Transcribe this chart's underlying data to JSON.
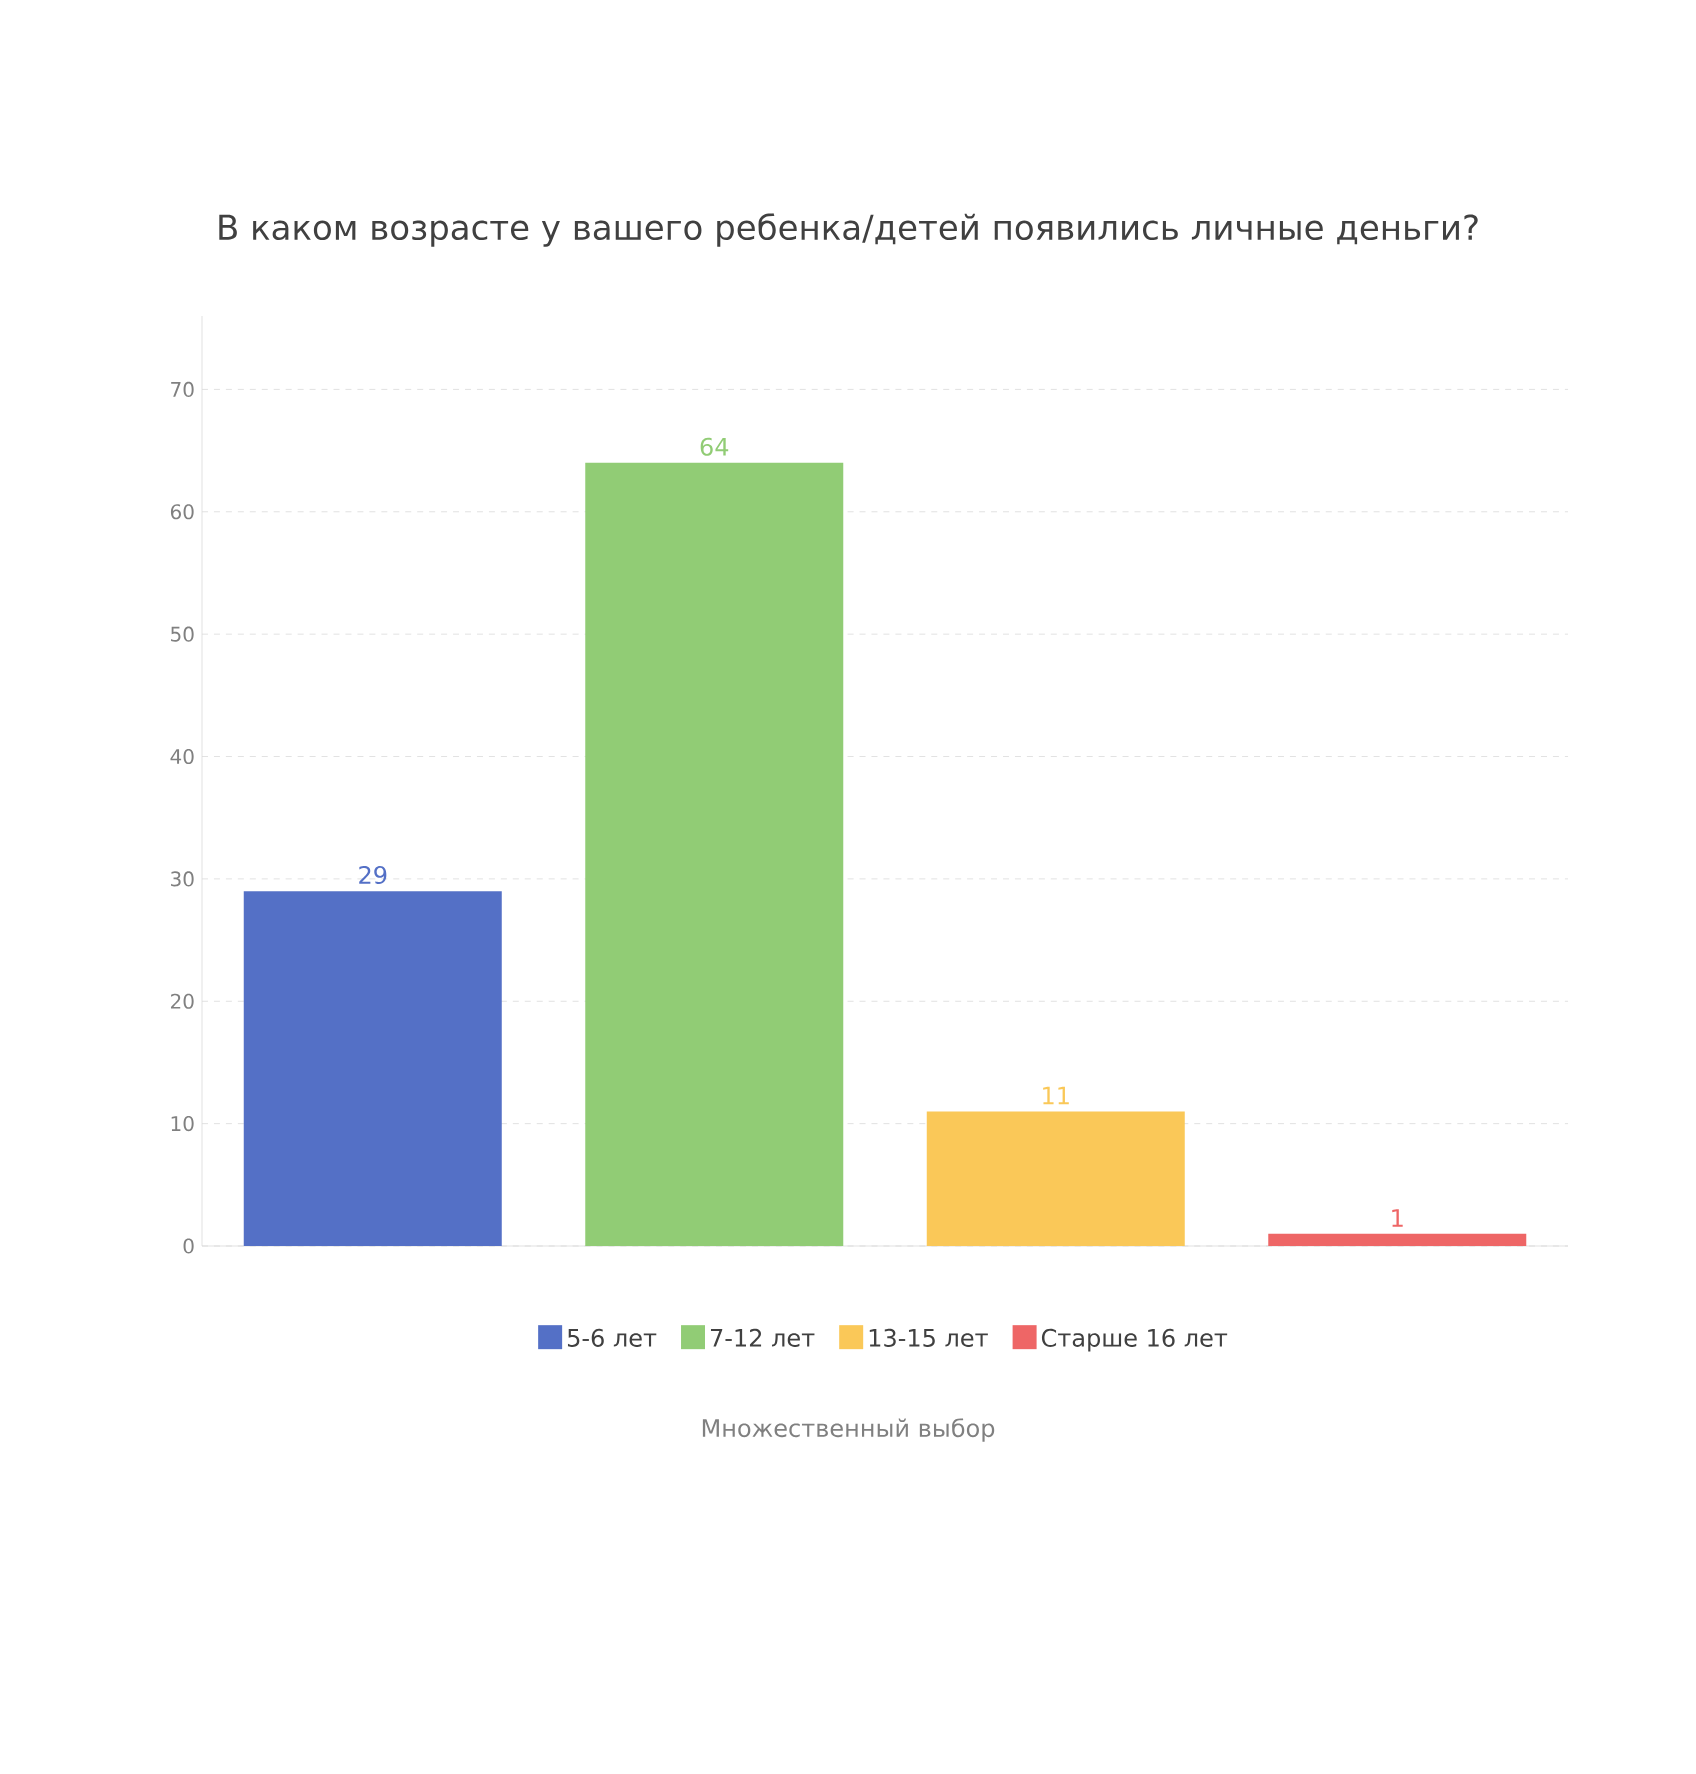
{
  "chart_data": {
    "type": "bar",
    "title": "В каком возрасте у вашего ребенка/детей появились личные деньги?",
    "categories": [
      null,
      null,
      null,
      null
    ],
    "series": [
      {
        "name": "5-6 лет",
        "color": "#5470c6",
        "values": [
          29,
          null,
          null,
          null
        ]
      },
      {
        "name": "7-12 лет",
        "color": "#91cc75",
        "values": [
          null,
          64,
          null,
          null
        ]
      },
      {
        "name": "13-15 лет",
        "color": "#fac858",
        "values": [
          null,
          null,
          11,
          null
        ]
      },
      {
        "name": "Старше 16 лет",
        "color": "#ee6666",
        "values": [
          null,
          null,
          null,
          1
        ]
      }
    ],
    "ylim": [
      0,
      76
    ],
    "yticks": [
      0,
      10,
      20,
      30,
      40,
      50,
      60,
      70
    ],
    "grid": "y",
    "data_labels": true,
    "legend": "bottom",
    "tick_labels": "y",
    "annotations": [
      "Множественный выбор"
    ]
  }
}
